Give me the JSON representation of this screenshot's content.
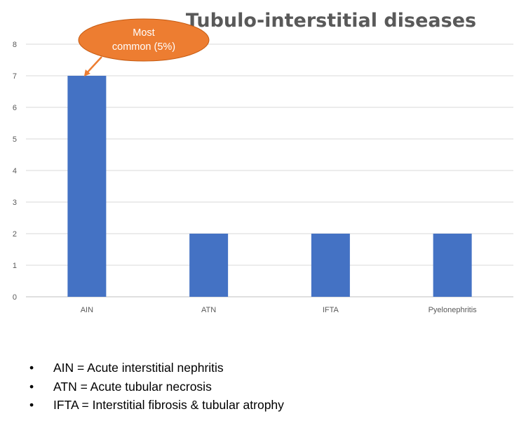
{
  "chart_data": {
    "type": "bar",
    "title": "Tubulo-interstitial diseases",
    "categories": [
      "AIN",
      "ATN",
      "IFTA",
      "Pyelonephritis"
    ],
    "values": [
      7,
      2,
      2,
      2
    ],
    "ylim": [
      0,
      8
    ],
    "yticks": [
      0,
      1,
      2,
      3,
      4,
      5,
      6,
      7,
      8
    ],
    "xlabel": "",
    "ylabel": "",
    "grid": true,
    "legend": "none",
    "bar_color": "#4472C4",
    "annotation": {
      "lines": [
        "Most",
        "common (5%)"
      ],
      "target_category": "AIN",
      "color": "#ED7D31"
    }
  },
  "notes": [
    {
      "bullet": "•",
      "text": "AIN = Acute interstitial nephritis"
    },
    {
      "bullet": "•",
      "text": "ATN = Acute tubular necrosis"
    },
    {
      "bullet": "•",
      "text": "IFTA = Interstitial fibrosis & tubular atrophy"
    }
  ]
}
